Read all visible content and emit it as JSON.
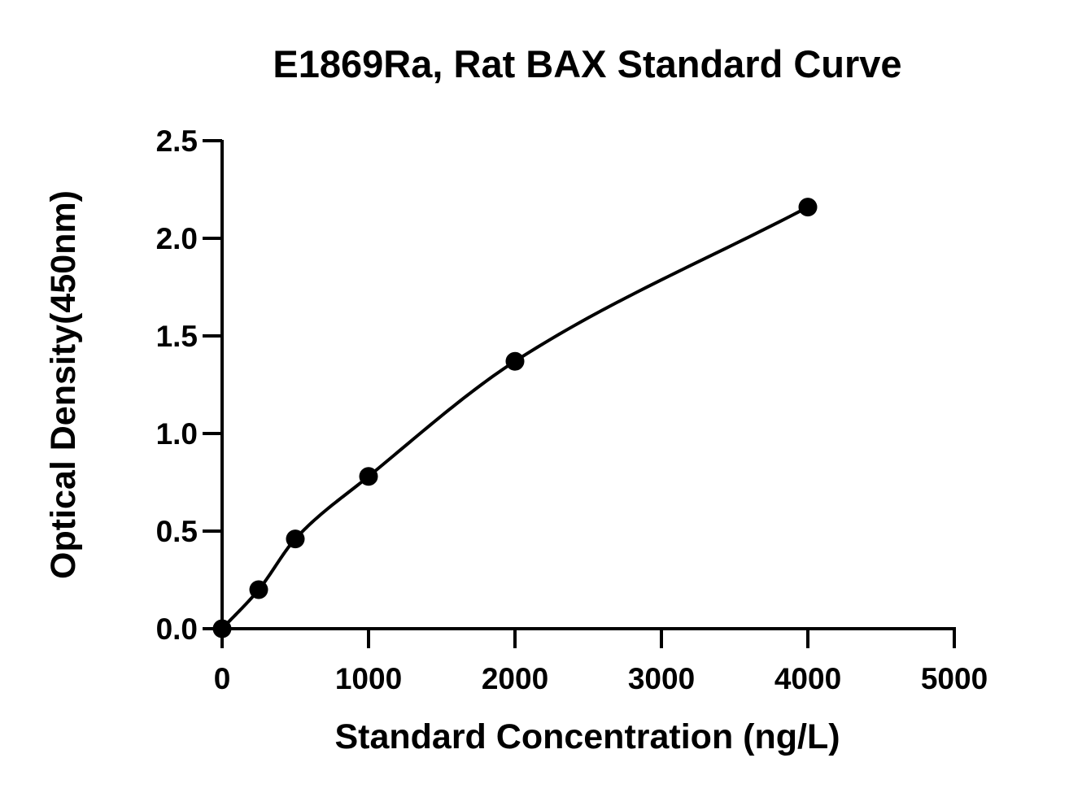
{
  "chart_data": {
    "type": "scatter",
    "title": "E1869Ra, Rat BAX Standard Curve",
    "xlabel": "Standard Concentration (ng/L)",
    "ylabel": "Optical Density(450nm)",
    "xlim": [
      0,
      5000
    ],
    "ylim": [
      0,
      2.5
    ],
    "xticks": [
      "0",
      "1000",
      "2000",
      "3000",
      "4000",
      "5000"
    ],
    "yticks": [
      "0.0",
      "0.5",
      "1.0",
      "1.5",
      "2.0",
      "2.5"
    ],
    "grid": false,
    "legend": "none",
    "points": [
      {
        "x": 0,
        "y": 0.0
      },
      {
        "x": 250,
        "y": 0.2
      },
      {
        "x": 500,
        "y": 0.46
      },
      {
        "x": 1000,
        "y": 0.78
      },
      {
        "x": 2000,
        "y": 1.37
      },
      {
        "x": 4000,
        "y": 2.16
      }
    ],
    "fit_curve": true
  }
}
